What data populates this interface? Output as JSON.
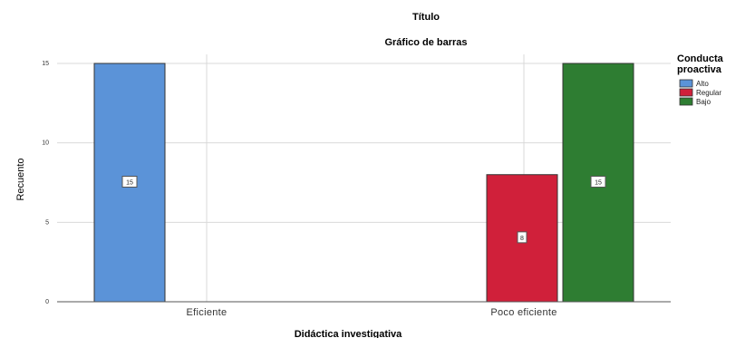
{
  "chart_data": {
    "type": "bar",
    "title": "Título",
    "subtitle": "Gráfico de barras",
    "xlabel": "Didáctica investigativa",
    "ylabel": "Recuento",
    "categories": [
      "Eficiente",
      "Poco eficiente"
    ],
    "series": [
      {
        "name": "Alto",
        "color": "#5b93d8",
        "values": [
          15,
          null
        ]
      },
      {
        "name": "Regular",
        "color": "#d0203a",
        "values": [
          null,
          8
        ]
      },
      {
        "name": "Bajo",
        "color": "#2e7d32",
        "values": [
          null,
          15
        ]
      }
    ],
    "data_labels": [
      {
        "series": 0,
        "category": 0,
        "text": "15"
      },
      {
        "series": 1,
        "category": 1,
        "text": "8"
      },
      {
        "series": 2,
        "category": 1,
        "text": "15"
      }
    ],
    "yticks": [
      0,
      5,
      10,
      15
    ],
    "ytick_labels": [
      "0",
      "5",
      "10",
      "15"
    ],
    "ylim": [
      0,
      15
    ],
    "grid": true,
    "legend": {
      "title_line1": "Conducta",
      "title_line2": "proactiva",
      "position": "right"
    }
  }
}
